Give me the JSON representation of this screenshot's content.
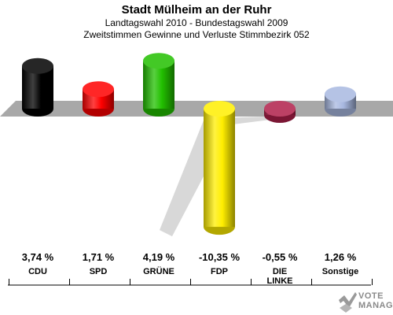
{
  "header": {
    "title": "Stadt Mülheim an der Ruhr",
    "line1": "Landtagswahl 2010 - Bundestagswahl 2009",
    "line2": "Zweitstimmen Gewinne und Verluste Stimmbezirk 052"
  },
  "chart_data": {
    "type": "bar",
    "title": "Stadt Mülheim an der Ruhr",
    "subtitle": "Landtagswahl 2010 - Bundestagswahl 2009 / Zweitstimmen Gewinne und Verluste Stimmbezirk 052",
    "categories": [
      "CDU",
      "SPD",
      "GRÜNE",
      "FDP",
      "DIE LINKE",
      "Sonstige"
    ],
    "values": [
      3.74,
      1.71,
      4.19,
      -10.35,
      -0.55,
      1.26
    ],
    "value_labels": [
      "3,74 %",
      "1,71 %",
      "4,19 %",
      "-10,35 %",
      "-0,55 %",
      "1,26 %"
    ],
    "label_lines": [
      [
        "CDU"
      ],
      [
        "SPD"
      ],
      [
        "GRÜNE"
      ],
      [
        "FDP"
      ],
      [
        "DIE",
        "LINKE"
      ],
      [
        "Sonstige"
      ]
    ],
    "colors": [
      "#000000",
      "#ff0000",
      "#22c000",
      "#ffee00",
      "#b0204a",
      "#a8b8e0"
    ],
    "ylim": [
      -11,
      5
    ],
    "grid": false,
    "legend": "none"
  },
  "logo": {
    "line1": "VOTE",
    "line2": "MANAGER",
    "icon": "vote-manager-logo-icon"
  }
}
